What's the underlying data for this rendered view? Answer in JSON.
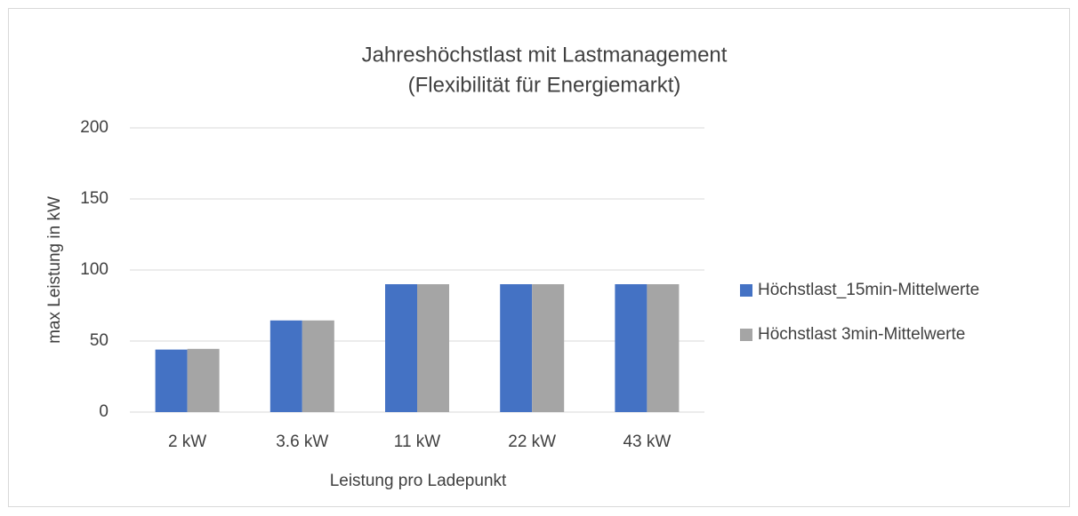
{
  "chart_data": {
    "type": "bar",
    "title": [
      "Jahreshöchstlast mit Lastmanagement",
      "(Flexibilität für Energiemarkt)"
    ],
    "x_label": "Leistung pro Ladepunkt",
    "y_label": "max Leistung in kW",
    "categories": [
      "2 kW",
      "3.6 kW",
      "11 kW",
      "22 kW",
      "43 kW"
    ],
    "series": [
      {
        "name": "Höchstlast_15min-Mittelwerte",
        "color": "#4472c4",
        "values": [
          44,
          64.5,
          90,
          90,
          90
        ]
      },
      {
        "name": "Höchstlast 3min-Mittelwerte",
        "color": "#a5a5a5",
        "values": [
          44.5,
          64.5,
          90,
          90,
          90
        ]
      }
    ],
    "ylim": [
      0,
      200
    ],
    "yticks": [
      0,
      50,
      100,
      150,
      200
    ],
    "grid": true,
    "legend": "right"
  }
}
